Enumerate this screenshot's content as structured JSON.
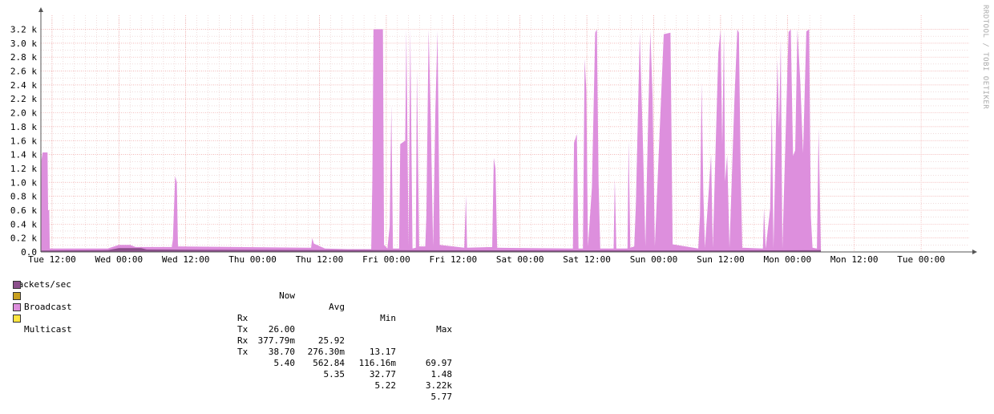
{
  "watermark": "RRDTOOL / TOBI OETIKER",
  "chart_data": {
    "type": "area",
    "title": "",
    "ylabel": "Packets/sec",
    "ylim": [
      0,
      3300
    ],
    "yticks": [
      {
        "value": 0,
        "label": "0.0"
      },
      {
        "value": 200,
        "label": "0.2 k"
      },
      {
        "value": 400,
        "label": "0.4 k"
      },
      {
        "value": 600,
        "label": "0.6 k"
      },
      {
        "value": 800,
        "label": "0.8 k"
      },
      {
        "value": 1000,
        "label": "1.0 k"
      },
      {
        "value": 1200,
        "label": "1.2 k"
      },
      {
        "value": 1400,
        "label": "1.4 k"
      },
      {
        "value": 1600,
        "label": "1.6 k"
      },
      {
        "value": 1800,
        "label": "1.8 k"
      },
      {
        "value": 2000,
        "label": "2.0 k"
      },
      {
        "value": 2200,
        "label": "2.2 k"
      },
      {
        "value": 2400,
        "label": "2.4 k"
      },
      {
        "value": 2600,
        "label": "2.6 k"
      },
      {
        "value": 2800,
        "label": "2.8 k"
      },
      {
        "value": 3000,
        "label": "3.0 k"
      },
      {
        "value": 3200,
        "label": "3.2 k"
      }
    ],
    "xlim_hours": [
      -2,
      138
    ],
    "xticks": [
      {
        "hour": 0,
        "label": "Tue 12:00"
      },
      {
        "hour": 12,
        "label": "Wed 00:00"
      },
      {
        "hour": 24,
        "label": "Wed 12:00"
      },
      {
        "hour": 36,
        "label": "Thu 00:00"
      },
      {
        "hour": 48,
        "label": "Thu 12:00"
      },
      {
        "hour": 60,
        "label": "Fri 00:00"
      },
      {
        "hour": 72,
        "label": "Fri 12:00"
      },
      {
        "hour": 84,
        "label": "Sat 00:00"
      },
      {
        "hour": 96,
        "label": "Sat 12:00"
      },
      {
        "hour": 108,
        "label": "Sun 00:00"
      },
      {
        "hour": 120,
        "label": "Sun 12:00"
      },
      {
        "hour": 132,
        "label": "Mon 00:00"
      },
      {
        "hour": 144,
        "label": "Mon 12:00"
      },
      {
        "hour": 156,
        "label": "Tue 00:00"
      }
    ],
    "series": [
      {
        "name": "Multicast",
        "color": "#dd8fdd",
        "points": [
          [
            -2,
            0
          ],
          [
            -1.9,
            1320
          ],
          [
            -1.7,
            1430
          ],
          [
            -0.8,
            1430
          ],
          [
            -0.7,
            600
          ],
          [
            -0.5,
            600
          ],
          [
            -0.4,
            50
          ],
          [
            10,
            50
          ],
          [
            12,
            100
          ],
          [
            14,
            100
          ],
          [
            15,
            70
          ],
          [
            21.5,
            70
          ],
          [
            21.7,
            180
          ],
          [
            22.1,
            1090
          ],
          [
            22.4,
            1000
          ],
          [
            22.6,
            80
          ],
          [
            33,
            70
          ],
          [
            46.5,
            60
          ],
          [
            46.7,
            200
          ],
          [
            47,
            120
          ],
          [
            49,
            50
          ],
          [
            53,
            40
          ],
          [
            57.3,
            40
          ],
          [
            57.5,
            1030
          ],
          [
            57.7,
            3200
          ],
          [
            59.4,
            3200
          ],
          [
            59.6,
            100
          ],
          [
            60.2,
            50
          ],
          [
            60.6,
            370
          ],
          [
            60.9,
            2110
          ],
          [
            61.2,
            50
          ],
          [
            62.3,
            50
          ],
          [
            62.5,
            1550
          ],
          [
            63.4,
            1600
          ],
          [
            63.6,
            3200
          ],
          [
            64,
            90
          ],
          [
            64.3,
            3200
          ],
          [
            64.7,
            50
          ],
          [
            65.3,
            60
          ],
          [
            65.5,
            2620
          ],
          [
            65.9,
            80
          ],
          [
            67,
            80
          ],
          [
            67.2,
            510
          ],
          [
            67.6,
            3200
          ],
          [
            68,
            1850
          ],
          [
            68.4,
            80
          ],
          [
            68.8,
            2020
          ],
          [
            69.2,
            3180
          ],
          [
            69.6,
            100
          ],
          [
            74,
            60
          ],
          [
            74.3,
            815
          ],
          [
            74.5,
            60
          ],
          [
            79,
            70
          ],
          [
            79.3,
            1350
          ],
          [
            79.6,
            1200
          ],
          [
            79.9,
            60
          ],
          [
            93.5,
            50
          ],
          [
            93.7,
            1570
          ],
          [
            94.2,
            1690
          ],
          [
            94.5,
            50
          ],
          [
            95.3,
            50
          ],
          [
            95.6,
            2780
          ],
          [
            95.9,
            2330
          ],
          [
            96.2,
            80
          ],
          [
            96.9,
            930
          ],
          [
            97.5,
            3150
          ],
          [
            97.8,
            3200
          ],
          [
            98.1,
            1010
          ],
          [
            98.4,
            50
          ],
          [
            100.8,
            50
          ],
          [
            101,
            1060
          ],
          [
            101.3,
            50
          ],
          [
            103.3,
            50
          ],
          [
            103.5,
            1600
          ],
          [
            103.8,
            60
          ],
          [
            104.5,
            80
          ],
          [
            104.8,
            700
          ],
          [
            105.5,
            3150
          ],
          [
            106.1,
            1460
          ],
          [
            106.5,
            80
          ],
          [
            107,
            1930
          ],
          [
            107.4,
            3180
          ],
          [
            107.8,
            2230
          ],
          [
            108.2,
            80
          ],
          [
            109.8,
            3130
          ],
          [
            111,
            3150
          ],
          [
            111.4,
            110
          ],
          [
            116,
            50
          ],
          [
            116.3,
            520
          ],
          [
            116.6,
            2430
          ],
          [
            116.9,
            850
          ],
          [
            117.2,
            60
          ],
          [
            118.3,
            1400
          ],
          [
            118.6,
            60
          ],
          [
            119.6,
            2870
          ],
          [
            120,
            3190
          ],
          [
            120.3,
            1540
          ],
          [
            120.6,
            3190
          ],
          [
            120.8,
            1010
          ],
          [
            121.2,
            1400
          ],
          [
            121.6,
            60
          ],
          [
            122.5,
            2220
          ],
          [
            123,
            3200
          ],
          [
            123.3,
            3150
          ],
          [
            123.6,
            1180
          ],
          [
            123.9,
            60
          ],
          [
            127.6,
            50
          ],
          [
            127.8,
            630
          ],
          [
            128.1,
            50
          ],
          [
            128.9,
            630
          ],
          [
            129.2,
            2070
          ],
          [
            129.5,
            50
          ],
          [
            130.2,
            2770
          ],
          [
            130.5,
            1770
          ],
          [
            130.8,
            3060
          ],
          [
            131.1,
            50
          ],
          [
            132.2,
            3160
          ],
          [
            132.6,
            3200
          ],
          [
            133,
            1380
          ],
          [
            133.4,
            1460
          ],
          [
            133.8,
            3200
          ],
          [
            134.3,
            2460
          ],
          [
            134.8,
            1420
          ],
          [
            135.4,
            3170
          ],
          [
            135.9,
            3200
          ],
          [
            136.2,
            520
          ],
          [
            136.5,
            60
          ],
          [
            137.3,
            50
          ],
          [
            137.6,
            1780
          ],
          [
            138,
            60
          ]
        ]
      },
      {
        "name": "Broadcast",
        "color": "#8b4f8b",
        "points": [
          [
            -2,
            20
          ],
          [
            10,
            25
          ],
          [
            12,
            55
          ],
          [
            16,
            55
          ],
          [
            17,
            35
          ],
          [
            30,
            30
          ],
          [
            45,
            28
          ],
          [
            60,
            25
          ],
          [
            90,
            22
          ],
          [
            120,
            22
          ],
          [
            138,
            25
          ]
        ]
      }
    ]
  },
  "legend": {
    "header": {
      "title": "Packets/sec",
      "now": "Now",
      "avg": "Avg",
      "min": "Min",
      "max": "Max"
    },
    "rows": [
      {
        "name": "Broadcast",
        "dir": "Rx",
        "color": "#8b4f8b",
        "now": "26.00",
        "avg": "25.92",
        "min": "13.17",
        "max": "69.97"
      },
      {
        "name": "",
        "dir": "Tx",
        "color": "#c8a020",
        "now": "377.79m",
        "avg": "276.30m",
        "min": "116.16m",
        "max": "1.48"
      },
      {
        "name": "Multicast",
        "dir": "Rx",
        "color": "#dd8fdd",
        "now": "38.70",
        "avg": "562.84",
        "min": "32.77",
        "max": "3.22k"
      },
      {
        "name": "",
        "dir": "Tx",
        "color": "#ffe640",
        "now": "5.40",
        "avg": "5.35",
        "min": "5.22",
        "max": "5.77"
      }
    ]
  }
}
